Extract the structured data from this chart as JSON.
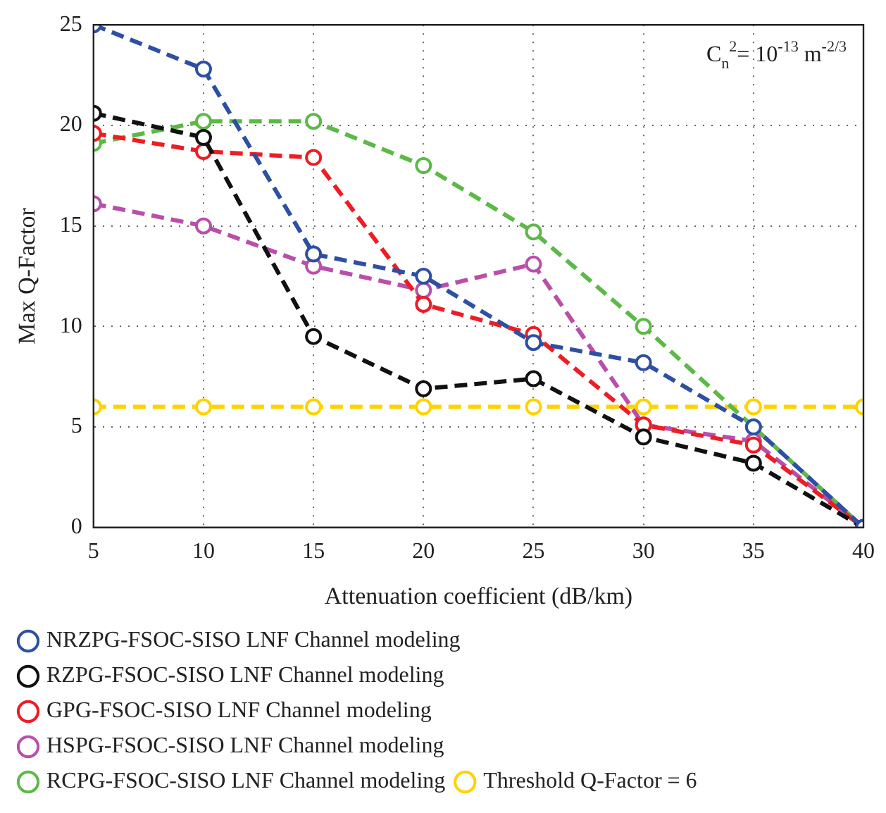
{
  "chart_data": {
    "type": "line",
    "xlabel": "Attenuation coefficient (dB/km)",
    "ylabel": "Max Q-Factor",
    "annotations": [
      "C$_{n}$$^{2}$= 10$^{-13}$ m$^{-2/3}$"
    ],
    "x": [
      5,
      10,
      15,
      20,
      25,
      30,
      35,
      40
    ],
    "xlim": [
      5,
      40
    ],
    "xticks": [
      5,
      10,
      15,
      20,
      25,
      30,
      35,
      40
    ],
    "ylim": [
      0,
      25
    ],
    "yticks": [
      0,
      5,
      10,
      15,
      20,
      25
    ],
    "grid": true,
    "legend": "bottom",
    "marker": "circle",
    "line_style": "dashed",
    "series": [
      {
        "name": "NRZPG-FSOC-SISO LNF Channel modeling",
        "color": "#2e4fa3",
        "values": [
          25,
          22.8,
          13.6,
          12.5,
          9.2,
          8.2,
          5.0,
          0
        ]
      },
      {
        "name": "RZPG-FSOC-SISO LNF Channel modeling",
        "color": "#111111",
        "values": [
          20.6,
          19.4,
          9.5,
          6.9,
          7.4,
          4.5,
          3.2,
          0
        ]
      },
      {
        "name": "GPG-FSOC-SISO LNF Channel modeling",
        "color": "#ee1c24",
        "values": [
          19.6,
          18.7,
          18.4,
          11.1,
          9.6,
          5.1,
          4.1,
          0
        ]
      },
      {
        "name": "HSPG-FSOC-SISO LNF Channel modeling",
        "color": "#b94faa",
        "values": [
          16.1,
          15.0,
          13.0,
          11.8,
          13.1,
          5.1,
          4.3,
          0
        ]
      },
      {
        "name": "RCPG-FSOC-SISO LNF Channel modeling",
        "color": "#5cb947",
        "values": [
          19.1,
          20.2,
          20.2,
          18.0,
          14.7,
          10.0,
          5.0,
          0
        ]
      },
      {
        "name": "Threshold Q-Factor = 6",
        "color": "#ffd200",
        "values": [
          6,
          6,
          6,
          6,
          6,
          6,
          6,
          6
        ]
      }
    ]
  }
}
